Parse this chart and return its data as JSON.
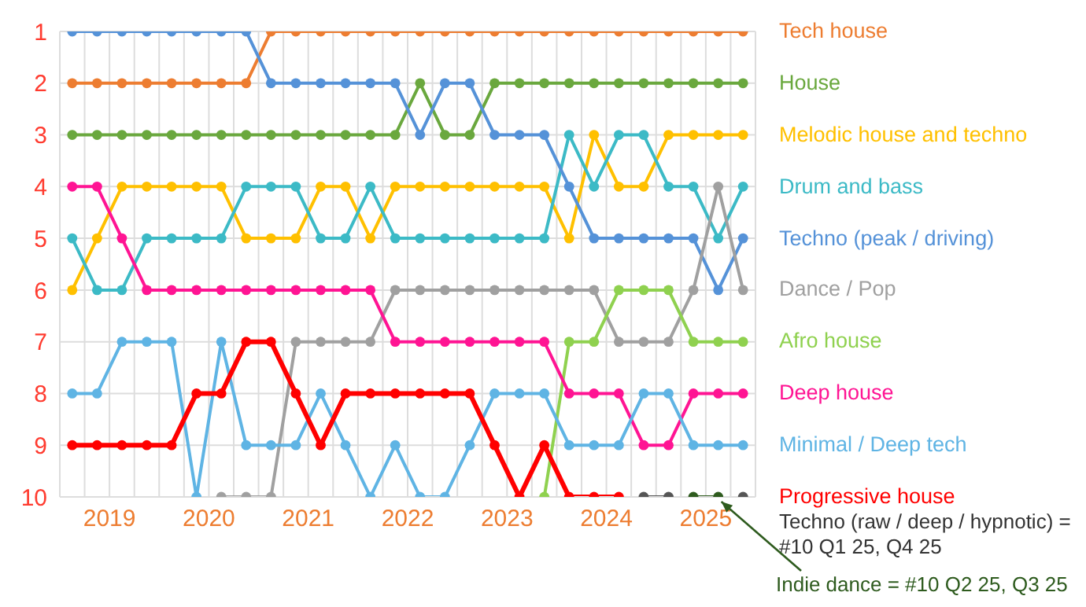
{
  "chart_data": {
    "type": "line",
    "x": [
      2019.125,
      2019.375,
      2019.625,
      2019.875,
      2020.125,
      2020.375,
      2020.625,
      2020.875,
      2021.125,
      2021.375,
      2021.625,
      2021.875,
      2022.125,
      2022.375,
      2022.625,
      2022.875,
      2023.125,
      2023.375,
      2023.625,
      2023.875,
      2024.125,
      2024.375,
      2024.625,
      2024.875,
      2025.125,
      2025.375,
      2025.625,
      2025.875
    ],
    "series": [
      {
        "name": "Tech house",
        "color": "#ed7d31",
        "values": [
          2,
          2,
          2,
          2,
          2,
          2,
          2,
          2,
          1,
          1,
          1,
          1,
          1,
          1,
          1,
          1,
          1,
          1,
          1,
          1,
          1,
          1,
          1,
          1,
          1,
          1,
          1,
          1
        ]
      },
      {
        "name": "House",
        "color": "#6aa83e",
        "values": [
          3,
          3,
          3,
          3,
          3,
          3,
          3,
          3,
          3,
          3,
          3,
          3,
          3,
          3,
          2,
          3,
          3,
          2,
          2,
          2,
          2,
          2,
          2,
          2,
          2,
          2,
          2,
          2
        ]
      },
      {
        "name": "Melodic house and techno",
        "color": "#ffc000",
        "values": [
          6,
          5,
          4,
          4,
          4,
          4,
          4,
          5,
          5,
          5,
          4,
          4,
          5,
          4,
          4,
          4,
          4,
          4,
          4,
          4,
          5,
          3,
          4,
          4,
          3,
          3,
          3,
          3
        ]
      },
      {
        "name": "Drum and bass",
        "color": "#3cbac6",
        "values": [
          5,
          6,
          6,
          5,
          5,
          5,
          5,
          4,
          4,
          4,
          5,
          5,
          4,
          5,
          5,
          5,
          5,
          5,
          5,
          5,
          3,
          4,
          3,
          3,
          4,
          4,
          5,
          4
        ]
      },
      {
        "name": "Techno (peak / driving)",
        "color": "#5592d8",
        "values": [
          1,
          1,
          1,
          1,
          1,
          1,
          1,
          1,
          2,
          2,
          2,
          2,
          2,
          2,
          3,
          2,
          2,
          3,
          3,
          3,
          4,
          5,
          5,
          5,
          5,
          5,
          6,
          5
        ]
      },
      {
        "name": "Dance / Pop",
        "color": "#a0a0a0",
        "values": [
          null,
          null,
          null,
          null,
          null,
          null,
          10,
          10,
          10,
          7,
          7,
          7,
          7,
          6,
          6,
          6,
          6,
          6,
          6,
          6,
          6,
          6,
          7,
          7,
          7,
          6,
          4,
          6
        ]
      },
      {
        "name": "Afro house",
        "color": "#8fd14f",
        "values": [
          null,
          null,
          null,
          null,
          null,
          null,
          null,
          null,
          null,
          null,
          null,
          null,
          null,
          null,
          null,
          null,
          null,
          null,
          null,
          10,
          7,
          7,
          6,
          6,
          6,
          7,
          7,
          7
        ]
      },
      {
        "name": "Deep house",
        "color": "#ff1493",
        "values": [
          4,
          4,
          5,
          6,
          6,
          6,
          6,
          6,
          6,
          6,
          6,
          6,
          6,
          7,
          7,
          7,
          7,
          7,
          7,
          7,
          8,
          8,
          8,
          9,
          9,
          8,
          8,
          8
        ]
      },
      {
        "name": "Minimal / Deep tech",
        "color": "#5fb4e4",
        "values": [
          8,
          8,
          7,
          7,
          7,
          10,
          7,
          9,
          9,
          9,
          8,
          9,
          10,
          9,
          10,
          10,
          9,
          8,
          8,
          8,
          9,
          9,
          9,
          8,
          8,
          9,
          9,
          9
        ]
      },
      {
        "name": "Progressive house",
        "color": "#ff0000",
        "values": [
          9,
          9,
          9,
          9,
          9,
          8,
          8,
          7,
          7,
          8,
          9,
          8,
          8,
          8,
          8,
          8,
          8,
          9,
          10,
          9,
          10,
          10,
          10,
          null,
          null,
          null,
          null,
          null
        ]
      },
      {
        "color": "#555555",
        "values": [
          null,
          null,
          null,
          null,
          null,
          null,
          null,
          null,
          null,
          null,
          null,
          null,
          null,
          null,
          null,
          null,
          null,
          null,
          null,
          null,
          null,
          null,
          null,
          10,
          10,
          null,
          null,
          10
        ]
      },
      {
        "color": "#2e5b1e",
        "values": [
          null,
          null,
          null,
          null,
          null,
          null,
          null,
          null,
          null,
          null,
          null,
          null,
          null,
          null,
          null,
          null,
          null,
          null,
          null,
          null,
          null,
          null,
          null,
          null,
          null,
          10,
          10,
          null
        ]
      }
    ],
    "xlim": [
      2019,
      2026
    ],
    "xticks": [
      {
        "value": 2019,
        "label": null
      },
      {
        "value": 2019.25,
        "label": null
      },
      {
        "value": 2019.5,
        "label": "2019"
      },
      {
        "value": 2019.75,
        "label": null
      },
      {
        "value": 2020,
        "label": null
      },
      {
        "value": 2020.25,
        "label": null
      },
      {
        "value": 2020.5,
        "label": "2020"
      },
      {
        "value": 2020.75,
        "label": null
      },
      {
        "value": 2021,
        "label": null
      },
      {
        "value": 2021.25,
        "label": null
      },
      {
        "value": 2021.5,
        "label": "2021"
      },
      {
        "value": 2021.75,
        "label": null
      },
      {
        "value": 2022,
        "label": null
      },
      {
        "value": 2022.25,
        "label": null
      },
      {
        "value": 2022.5,
        "label": "2022"
      },
      {
        "value": 2022.75,
        "label": null
      },
      {
        "value": 2023,
        "label": null
      },
      {
        "value": 2023.25,
        "label": null
      },
      {
        "value": 2023.5,
        "label": "2023"
      },
      {
        "value": 2023.75,
        "label": null
      },
      {
        "value": 2024,
        "label": null
      },
      {
        "value": 2024.25,
        "label": null
      },
      {
        "value": 2024.5,
        "label": "2024"
      },
      {
        "value": 2024.75,
        "label": null
      },
      {
        "value": 2025,
        "label": null
      },
      {
        "value": 2025.25,
        "label": null
      },
      {
        "value": 2025.5,
        "label": "2025"
      },
      {
        "value": 2025.75,
        "label": null
      },
      {
        "value": 2026,
        "label": null
      }
    ],
    "ylim": [
      10,
      1
    ],
    "yticks": [
      1,
      2,
      3,
      4,
      5,
      6,
      7,
      8,
      9,
      10
    ],
    "grid": true,
    "legend": "right",
    "marker": "circle",
    "line_style": "solid",
    "annotations": [
      "Techno (raw / deep / hypnotic) = #10 Q1 25, Q4 25",
      {
        "text": "Indie dance = #10 Q2 25, Q3 25",
        "x": 2025.625,
        "y": 10
      }
    ]
  }
}
